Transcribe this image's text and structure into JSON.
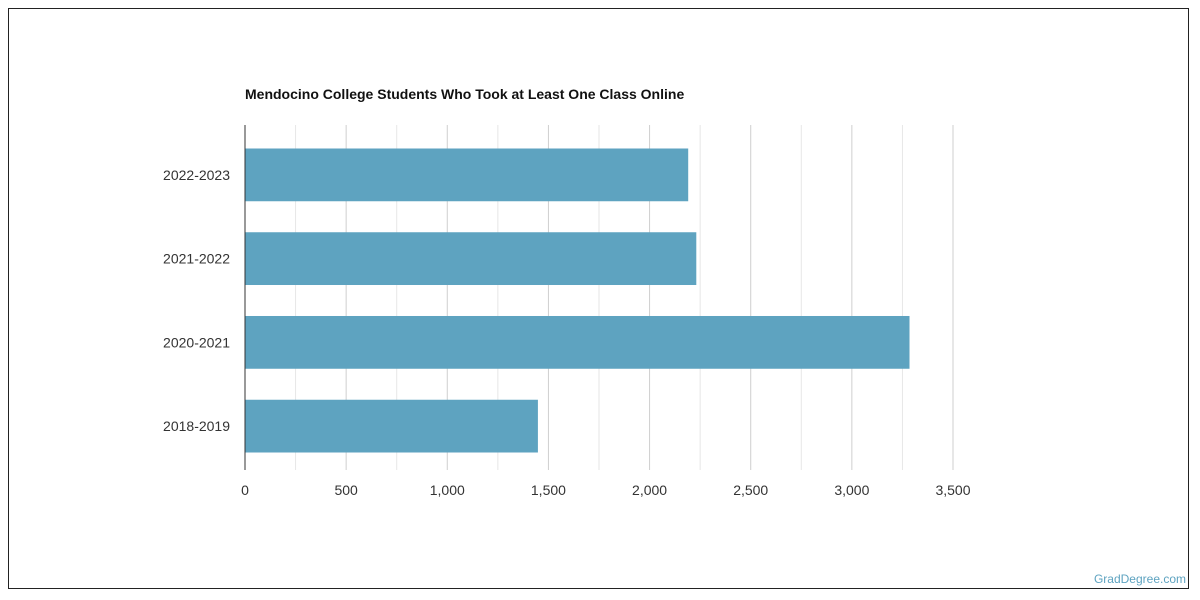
{
  "chart_data": {
    "type": "bar",
    "orientation": "horizontal",
    "title": "Mendocino College Students Who Took at Least One Class Online",
    "categories": [
      "2022-2023",
      "2021-2022",
      "2020-2021",
      "2018-2019"
    ],
    "values": [
      2191,
      2231,
      3285,
      1448
    ],
    "xlim": [
      0,
      3500
    ],
    "x_ticks": [
      0,
      500,
      1000,
      1500,
      2000,
      2500,
      3000,
      3500
    ],
    "x_tick_labels": [
      "0",
      "500",
      "1,000",
      "1,500",
      "2,000",
      "2,500",
      "3,000",
      "3,500"
    ],
    "xlabel": "",
    "ylabel": "",
    "grid": true,
    "bar_color": "#5ea3c0"
  },
  "footer": {
    "source": "GradDegree.com"
  }
}
